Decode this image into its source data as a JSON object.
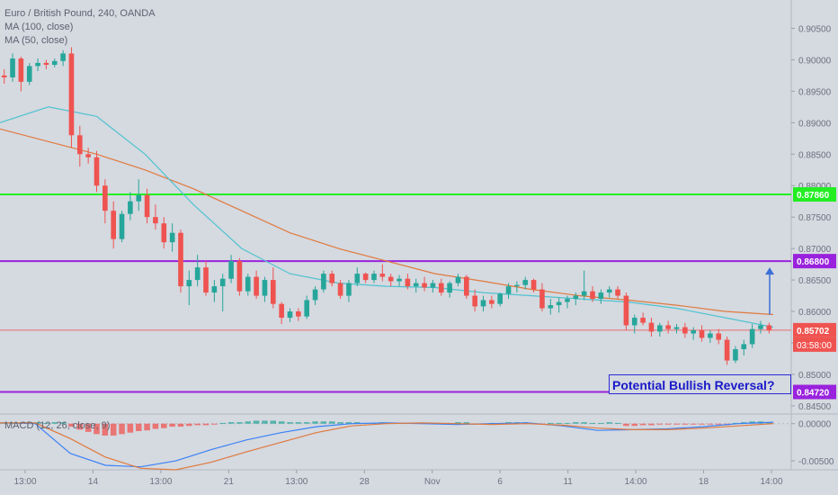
{
  "chart_data": {
    "type": "candlestick",
    "title": "Euro / British Pound, 240, OANDA",
    "indicators": [
      "MA (100, close)",
      "MA (50, close)"
    ],
    "macd_label": "MACD (12, 26, close, 9)",
    "price_axis": {
      "ticks": [
        "0.90500",
        "0.90000",
        "0.89500",
        "0.89000",
        "0.88500",
        "0.88000",
        "0.87500",
        "0.87000",
        "0.86500",
        "0.86000",
        "0.85500",
        "0.85000",
        "0.84500"
      ],
      "ylim": [
        0.8437,
        0.9095
      ]
    },
    "macd_axis": {
      "ticks": [
        "0.00000",
        "-0.00500"
      ],
      "ylim": [
        -0.0062,
        0.0013
      ]
    },
    "time_axis": [
      "13:00",
      "14",
      "13:00",
      "21",
      "13:00",
      "28",
      "Nov",
      "6",
      "11",
      "14:00",
      "18",
      "14:00"
    ],
    "levels": [
      {
        "price": 0.8786,
        "label": "0.87860",
        "color": "#22ee22"
      },
      {
        "price": 0.868,
        "label": "0.86800",
        "color": "#9922dd"
      },
      {
        "price": 0.8472,
        "label": "0.84720",
        "color": "#9922dd"
      }
    ],
    "last_price": {
      "label": "0.85702",
      "value": 0.85702,
      "color": "#ef5350",
      "countdown": "03:58:00"
    },
    "candles": [
      [
        0.8975,
        0.8985,
        0.8962,
        0.8972
      ],
      [
        0.8972,
        0.901,
        0.8965,
        0.9002
      ],
      [
        0.9002,
        0.9005,
        0.895,
        0.8965
      ],
      [
        0.8965,
        0.8995,
        0.896,
        0.899
      ],
      [
        0.899,
        0.9002,
        0.8982,
        0.8995
      ],
      [
        0.8995,
        0.9,
        0.8985,
        0.8992
      ],
      [
        0.8992,
        0.9002,
        0.8988,
        0.8998
      ],
      [
        0.8998,
        0.9015,
        0.899,
        0.901
      ],
      [
        0.901,
        0.902,
        0.886,
        0.888
      ],
      [
        0.888,
        0.8895,
        0.883,
        0.885
      ],
      [
        0.885,
        0.886,
        0.8835,
        0.8845
      ],
      [
        0.8845,
        0.8855,
        0.879,
        0.88
      ],
      [
        0.88,
        0.881,
        0.874,
        0.876
      ],
      [
        0.876,
        0.8775,
        0.87,
        0.8715
      ],
      [
        0.8715,
        0.876,
        0.871,
        0.8755
      ],
      [
        0.8755,
        0.879,
        0.8745,
        0.8775
      ],
      [
        0.8775,
        0.881,
        0.876,
        0.8785
      ],
      [
        0.8785,
        0.8795,
        0.874,
        0.875
      ],
      [
        0.875,
        0.877,
        0.873,
        0.874
      ],
      [
        0.874,
        0.875,
        0.87,
        0.871
      ],
      [
        0.871,
        0.874,
        0.8695,
        0.8725
      ],
      [
        0.8725,
        0.873,
        0.863,
        0.864
      ],
      [
        0.864,
        0.8665,
        0.861,
        0.865
      ],
      [
        0.865,
        0.869,
        0.864,
        0.867
      ],
      [
        0.867,
        0.868,
        0.8625,
        0.863
      ],
      [
        0.863,
        0.865,
        0.8615,
        0.864
      ],
      [
        0.864,
        0.866,
        0.86,
        0.8652
      ],
      [
        0.8652,
        0.869,
        0.8645,
        0.868
      ],
      [
        0.868,
        0.8685,
        0.8625,
        0.8632
      ],
      [
        0.8632,
        0.866,
        0.8625,
        0.8655
      ],
      [
        0.8655,
        0.8665,
        0.862,
        0.8625
      ],
      [
        0.8625,
        0.8655,
        0.8615,
        0.865
      ],
      [
        0.865,
        0.867,
        0.8605,
        0.8612
      ],
      [
        0.8612,
        0.8615,
        0.858,
        0.859
      ],
      [
        0.859,
        0.8605,
        0.8583,
        0.86
      ],
      [
        0.86,
        0.8605,
        0.8585,
        0.8592
      ],
      [
        0.8592,
        0.8625,
        0.8588,
        0.8618
      ],
      [
        0.8618,
        0.864,
        0.861,
        0.8635
      ],
      [
        0.8635,
        0.8665,
        0.863,
        0.866
      ],
      [
        0.866,
        0.8665,
        0.864,
        0.8645
      ],
      [
        0.8645,
        0.865,
        0.862,
        0.8625
      ],
      [
        0.8625,
        0.865,
        0.8615,
        0.8645
      ],
      [
        0.8645,
        0.867,
        0.864,
        0.866
      ],
      [
        0.866,
        0.8662,
        0.8645,
        0.865
      ],
      [
        0.865,
        0.8665,
        0.8645,
        0.866
      ],
      [
        0.866,
        0.8675,
        0.8648,
        0.8655
      ],
      [
        0.8655,
        0.866,
        0.864,
        0.8648
      ],
      [
        0.8648,
        0.8658,
        0.864,
        0.8652
      ],
      [
        0.8652,
        0.866,
        0.8635,
        0.864
      ],
      [
        0.864,
        0.8652,
        0.863,
        0.8645
      ],
      [
        0.8645,
        0.8655,
        0.8632,
        0.8638
      ],
      [
        0.8638,
        0.865,
        0.863,
        0.8645
      ],
      [
        0.8645,
        0.8652,
        0.8625,
        0.863
      ],
      [
        0.863,
        0.8648,
        0.8622,
        0.8645
      ],
      [
        0.8645,
        0.866,
        0.864,
        0.8655
      ],
      [
        0.8655,
        0.8658,
        0.862,
        0.8625
      ],
      [
        0.8625,
        0.8635,
        0.86,
        0.8608
      ],
      [
        0.8608,
        0.8625,
        0.86,
        0.8618
      ],
      [
        0.8618,
        0.8625,
        0.8605,
        0.8612
      ],
      [
        0.8612,
        0.863,
        0.8608,
        0.8628
      ],
      [
        0.8628,
        0.8645,
        0.862,
        0.864
      ],
      [
        0.864,
        0.8648,
        0.863,
        0.8642
      ],
      [
        0.8642,
        0.8655,
        0.8635,
        0.865
      ],
      [
        0.865,
        0.8652,
        0.863,
        0.8635
      ],
      [
        0.8635,
        0.8645,
        0.86,
        0.8605
      ],
      [
        0.8605,
        0.862,
        0.8595,
        0.861
      ],
      [
        0.861,
        0.8622,
        0.8598,
        0.8615
      ],
      [
        0.8615,
        0.8625,
        0.8605,
        0.862
      ],
      [
        0.862,
        0.863,
        0.861,
        0.8625
      ],
      [
        0.8625,
        0.8665,
        0.8618,
        0.8632
      ],
      [
        0.8632,
        0.864,
        0.8615,
        0.862
      ],
      [
        0.862,
        0.8635,
        0.8612,
        0.863
      ],
      [
        0.863,
        0.864,
        0.8622,
        0.8635
      ],
      [
        0.8635,
        0.864,
        0.862,
        0.8625
      ],
      [
        0.8625,
        0.863,
        0.857,
        0.8578
      ],
      [
        0.8578,
        0.8595,
        0.8565,
        0.859
      ],
      [
        0.859,
        0.8598,
        0.8578,
        0.8582
      ],
      [
        0.8582,
        0.859,
        0.856,
        0.8568
      ],
      [
        0.8568,
        0.8582,
        0.856,
        0.8578
      ],
      [
        0.8578,
        0.8585,
        0.8565,
        0.8572
      ],
      [
        0.8572,
        0.858,
        0.8565,
        0.8575
      ],
      [
        0.8575,
        0.8582,
        0.8558,
        0.8565
      ],
      [
        0.8565,
        0.8575,
        0.8555,
        0.857
      ],
      [
        0.857,
        0.8578,
        0.8552,
        0.8558
      ],
      [
        0.8558,
        0.857,
        0.855,
        0.8565
      ],
      [
        0.8565,
        0.8572,
        0.8548,
        0.8555
      ],
      [
        0.8555,
        0.856,
        0.8515,
        0.8522
      ],
      [
        0.8522,
        0.8545,
        0.8518,
        0.854
      ],
      [
        0.854,
        0.8555,
        0.853,
        0.8548
      ],
      [
        0.8548,
        0.858,
        0.8542,
        0.8572
      ],
      [
        0.8572,
        0.8585,
        0.8565,
        0.8578
      ],
      [
        0.8578,
        0.8582,
        0.8565,
        0.857
      ]
    ],
    "ma100": [
      0.889,
      0.887,
      0.885,
      0.8825,
      0.8795,
      0.876,
      0.8725,
      0.87,
      0.868,
      0.866,
      0.8648,
      0.8635,
      0.8625,
      0.8618,
      0.861,
      0.86,
      0.8595
    ],
    "ma50": [
      0.89,
      0.8925,
      0.891,
      0.885,
      0.877,
      0.87,
      0.866,
      0.8645,
      0.864,
      0.8638,
      0.863,
      0.8625,
      0.862,
      0.8615,
      0.8605,
      0.859,
      0.8575
    ],
    "projection_arrow": {
      "from": 0.8595,
      "to": 0.867
    },
    "macd_hist": [
      0.0001,
      0.0002,
      0.0001,
      0.0001,
      0.0002,
      0.0001,
      0.0002,
      0.0002,
      -0.0004,
      -0.0008,
      -0.0011,
      -0.0014,
      -0.0016,
      -0.0016,
      -0.0014,
      -0.0012,
      -0.001,
      -0.0009,
      -0.0007,
      -0.0006,
      -0.0004,
      -0.0004,
      -0.0003,
      -0.0002,
      -0.0002,
      -0.0001,
      0.0001,
      0.0002,
      0.0002,
      0.0003,
      0.0004,
      0.0004,
      0.0004,
      0.0003,
      0.0002,
      0.0002,
      0.0002,
      0.0003,
      0.0003,
      0.0003,
      0.0002,
      0.0002,
      0.0002,
      0.0001,
      0.0001,
      0.0002,
      0.0001,
      0.0001,
      0.0001,
      0.0001,
      0.0001,
      0.0001,
      0.0001,
      0.0001,
      0.0002,
      0.0002,
      -0.0001,
      -0.0001,
      0.0001,
      0.0001,
      0.0002,
      0.0002,
      0.0002,
      0.0001,
      -0.0001,
      0.0001,
      0.0001,
      0.0001,
      0.0002,
      0.0002,
      0.0001,
      0.0001,
      0.0002,
      0.0001,
      -0.0003,
      -0.0003,
      -0.0002,
      -0.0002,
      -0.0001,
      -0.0001,
      -0.0001,
      -0.0001,
      -0.0001,
      -0.0001,
      -0.0001,
      -0.0001,
      -0.0002,
      0.0001,
      0.0002,
      0.0003,
      0.0003,
      0.0002
    ],
    "macd_line": [
      0.0001,
      0.0,
      -0.004,
      -0.0056,
      -0.0058,
      -0.005,
      -0.0035,
      -0.0022,
      -0.0012,
      -0.0004,
      0.0,
      0.0001,
      0.0,
      -0.0001,
      0.0,
      0.0001,
      -0.0003,
      -0.0009,
      -0.0008,
      -0.0007,
      -0.0004,
      0.0,
      0.0002
    ],
    "signal_line": [
      0.0001,
      0.0001,
      -0.002,
      -0.0045,
      -0.006,
      -0.0062,
      -0.0052,
      -0.0038,
      -0.0025,
      -0.0012,
      -0.0003,
      0.0,
      0.0001,
      0.0,
      -0.0001,
      0.0,
      -0.0002,
      -0.0006,
      -0.0008,
      -0.0008,
      -0.0006,
      -0.0003,
      0.0
    ]
  },
  "annotation": {
    "text": "Potential Bullish Reversal?"
  }
}
